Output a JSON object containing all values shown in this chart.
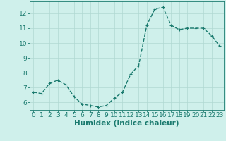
{
  "x": [
    0,
    1,
    2,
    3,
    4,
    5,
    6,
    7,
    8,
    9,
    10,
    11,
    12,
    13,
    14,
    15,
    16,
    17,
    18,
    19,
    20,
    21,
    22,
    23
  ],
  "y": [
    6.7,
    6.6,
    7.3,
    7.5,
    7.2,
    6.4,
    5.9,
    5.8,
    5.7,
    5.8,
    6.3,
    6.7,
    7.9,
    8.5,
    11.2,
    12.3,
    12.4,
    11.2,
    10.9,
    11.0,
    11.0,
    11.0,
    10.5,
    9.8
  ],
  "xlabel": "Humidex (Indice chaleur)",
  "line_color": "#1a7a6e",
  "marker_color": "#1a7a6e",
  "bg_color": "#cff0eb",
  "grid_color": "#b0d8d2",
  "axis_color": "#1a7a6e",
  "tick_color": "#1a7a6e",
  "ylim": [
    5.5,
    12.8
  ],
  "yticks": [
    6,
    7,
    8,
    9,
    10,
    11,
    12
  ],
  "xticks": [
    0,
    1,
    2,
    3,
    4,
    5,
    6,
    7,
    8,
    9,
    10,
    11,
    12,
    13,
    14,
    15,
    16,
    17,
    18,
    19,
    20,
    21,
    22,
    23
  ],
  "xtick_labels": [
    "0",
    "1",
    "2",
    "3",
    "4",
    "5",
    "6",
    "7",
    "8",
    "9",
    "10",
    "11",
    "12",
    "13",
    "14",
    "15",
    "16",
    "17",
    "18",
    "19",
    "20",
    "21",
    "22",
    "23"
  ],
  "font_size": 6.5,
  "xlabel_fontsize": 7.5,
  "line_width": 1.0,
  "marker_size": 2.5
}
